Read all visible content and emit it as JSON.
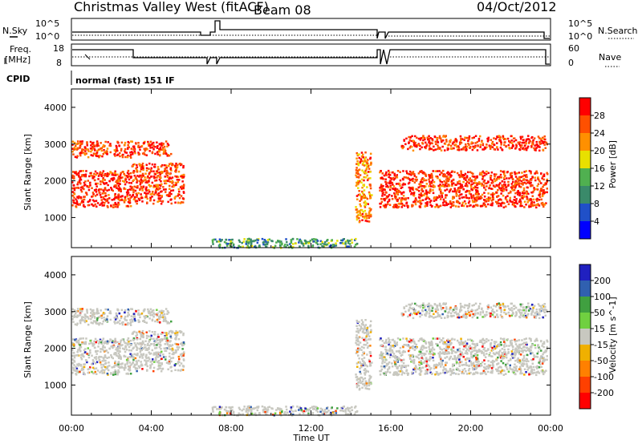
{
  "header": {
    "title": "Christmas Valley West (fitACF)",
    "beam": "Beam 08",
    "date": "04/Oct/2012"
  },
  "panels": {
    "nsky_label": "N.Sky",
    "nsearch_label": "N.Search",
    "nsky_ticks": [
      "10^5",
      "10^0"
    ],
    "nsearch_ticks": [
      "10^5",
      "10^0"
    ],
    "freq_label_1": "Freq.",
    "freq_label_2": "[MHz]",
    "freq_ticks": [
      "18",
      "8"
    ],
    "nave_label": "Nave",
    "nave_ticks": [
      "60",
      "0"
    ],
    "cpid_label": "CPID",
    "cpid_value": "normal (fast) 151 IF"
  },
  "chart_data": [
    {
      "type": "heatmap",
      "name": "power",
      "ylabel": "Slant Range [km]",
      "xlabel": "",
      "xlim": [
        0,
        24
      ],
      "ylim": [
        180,
        4500
      ],
      "yticks": [
        "1000",
        "2000",
        "3000",
        "4000"
      ],
      "colorbar_label": "Power [dB]",
      "colorbar_ticks": [
        "4",
        "8",
        "12",
        "16",
        "20",
        "24",
        "28"
      ],
      "colors": [
        "#0000ff",
        "#2050c8",
        "#3a8a6a",
        "#50b050",
        "#e8e000",
        "#ff9000",
        "#ff5000",
        "#ff0000"
      ],
      "bands": [
        {
          "t": [
            0.0,
            3.0
          ],
          "r": [
            2650,
            3100
          ],
          "level": 0.92
        },
        {
          "t": [
            0.0,
            3.0
          ],
          "r": [
            1300,
            2300
          ],
          "level": 0.95
        },
        {
          "t": [
            3.0,
            5.0
          ],
          "r": [
            2700,
            3100
          ],
          "level": 0.9
        },
        {
          "t": [
            3.0,
            5.6
          ],
          "r": [
            1400,
            2500
          ],
          "level": 0.9
        },
        {
          "t": [
            7.0,
            14.4
          ],
          "r": [
            200,
            450
          ],
          "level": 0.35
        },
        {
          "t": [
            14.2,
            15.0
          ],
          "r": [
            900,
            2800
          ],
          "level": 0.75
        },
        {
          "t": [
            16.5,
            23.8
          ],
          "r": [
            2850,
            3250
          ],
          "level": 0.95
        },
        {
          "t": [
            15.4,
            23.8
          ],
          "r": [
            1300,
            2300
          ],
          "level": 0.93
        }
      ]
    },
    {
      "type": "heatmap",
      "name": "velocity",
      "ylabel": "Slant Range [km]",
      "xlabel": "Time UT",
      "xlim": [
        0,
        24
      ],
      "ylim": [
        180,
        4500
      ],
      "xticks": [
        "00:00",
        "04:00",
        "08:00",
        "12:00",
        "16:00",
        "20:00",
        "00:00"
      ],
      "yticks": [
        "1000",
        "2000",
        "3000",
        "4000"
      ],
      "colorbar_label": "Velocity [m s^-1]",
      "colorbar_ticks": [
        "200",
        "100",
        "50",
        "15",
        "-15",
        "-50",
        "-100",
        "-200"
      ],
      "colors": [
        "#2020c0",
        "#3060b0",
        "#40a040",
        "#70d040",
        "#c8c8c0",
        "#f0b000",
        "#ff8000",
        "#ff4000",
        "#ff0000"
      ]
    }
  ]
}
